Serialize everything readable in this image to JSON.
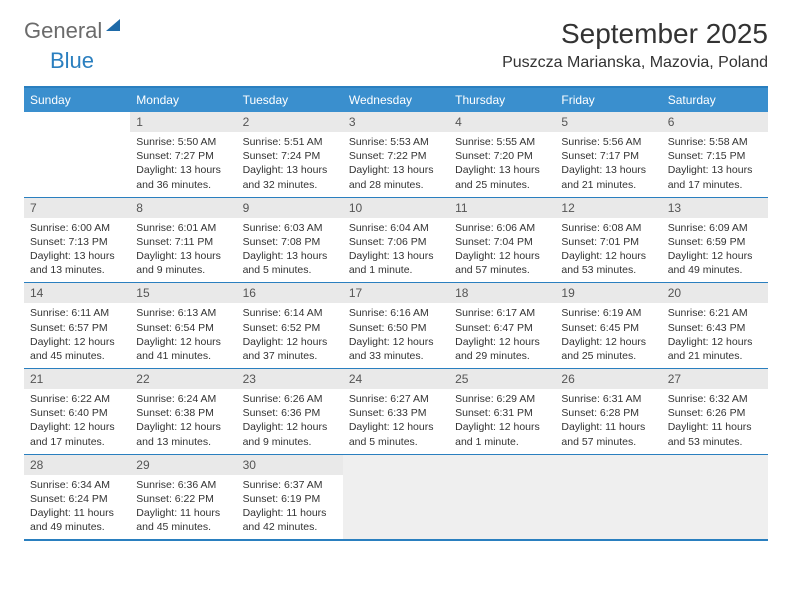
{
  "logo": {
    "part1": "General",
    "part2": "Blue"
  },
  "title": "September 2025",
  "location": "Puszcza Marianska, Mazovia, Poland",
  "day_headers": [
    "Sunday",
    "Monday",
    "Tuesday",
    "Wednesday",
    "Thursday",
    "Friday",
    "Saturday"
  ],
  "colors": {
    "header_bg": "#3a8fce",
    "header_fg": "#ffffff",
    "border": "#2a7fbf",
    "daynum_bg": "#e9e9e9",
    "logo_gray": "#6b6b6b",
    "logo_blue": "#2a7fbf"
  },
  "weeks": [
    [
      {
        "blank": true
      },
      {
        "n": "1",
        "sr": "5:50 AM",
        "ss": "7:27 PM",
        "dl": "13 hours and 36 minutes."
      },
      {
        "n": "2",
        "sr": "5:51 AM",
        "ss": "7:24 PM",
        "dl": "13 hours and 32 minutes."
      },
      {
        "n": "3",
        "sr": "5:53 AM",
        "ss": "7:22 PM",
        "dl": "13 hours and 28 minutes."
      },
      {
        "n": "4",
        "sr": "5:55 AM",
        "ss": "7:20 PM",
        "dl": "13 hours and 25 minutes."
      },
      {
        "n": "5",
        "sr": "5:56 AM",
        "ss": "7:17 PM",
        "dl": "13 hours and 21 minutes."
      },
      {
        "n": "6",
        "sr": "5:58 AM",
        "ss": "7:15 PM",
        "dl": "13 hours and 17 minutes."
      }
    ],
    [
      {
        "n": "7",
        "sr": "6:00 AM",
        "ss": "7:13 PM",
        "dl": "13 hours and 13 minutes."
      },
      {
        "n": "8",
        "sr": "6:01 AM",
        "ss": "7:11 PM",
        "dl": "13 hours and 9 minutes."
      },
      {
        "n": "9",
        "sr": "6:03 AM",
        "ss": "7:08 PM",
        "dl": "13 hours and 5 minutes."
      },
      {
        "n": "10",
        "sr": "6:04 AM",
        "ss": "7:06 PM",
        "dl": "13 hours and 1 minute."
      },
      {
        "n": "11",
        "sr": "6:06 AM",
        "ss": "7:04 PM",
        "dl": "12 hours and 57 minutes."
      },
      {
        "n": "12",
        "sr": "6:08 AM",
        "ss": "7:01 PM",
        "dl": "12 hours and 53 minutes."
      },
      {
        "n": "13",
        "sr": "6:09 AM",
        "ss": "6:59 PM",
        "dl": "12 hours and 49 minutes."
      }
    ],
    [
      {
        "n": "14",
        "sr": "6:11 AM",
        "ss": "6:57 PM",
        "dl": "12 hours and 45 minutes."
      },
      {
        "n": "15",
        "sr": "6:13 AM",
        "ss": "6:54 PM",
        "dl": "12 hours and 41 minutes."
      },
      {
        "n": "16",
        "sr": "6:14 AM",
        "ss": "6:52 PM",
        "dl": "12 hours and 37 minutes."
      },
      {
        "n": "17",
        "sr": "6:16 AM",
        "ss": "6:50 PM",
        "dl": "12 hours and 33 minutes."
      },
      {
        "n": "18",
        "sr": "6:17 AM",
        "ss": "6:47 PM",
        "dl": "12 hours and 29 minutes."
      },
      {
        "n": "19",
        "sr": "6:19 AM",
        "ss": "6:45 PM",
        "dl": "12 hours and 25 minutes."
      },
      {
        "n": "20",
        "sr": "6:21 AM",
        "ss": "6:43 PM",
        "dl": "12 hours and 21 minutes."
      }
    ],
    [
      {
        "n": "21",
        "sr": "6:22 AM",
        "ss": "6:40 PM",
        "dl": "12 hours and 17 minutes."
      },
      {
        "n": "22",
        "sr": "6:24 AM",
        "ss": "6:38 PM",
        "dl": "12 hours and 13 minutes."
      },
      {
        "n": "23",
        "sr": "6:26 AM",
        "ss": "6:36 PM",
        "dl": "12 hours and 9 minutes."
      },
      {
        "n": "24",
        "sr": "6:27 AM",
        "ss": "6:33 PM",
        "dl": "12 hours and 5 minutes."
      },
      {
        "n": "25",
        "sr": "6:29 AM",
        "ss": "6:31 PM",
        "dl": "12 hours and 1 minute."
      },
      {
        "n": "26",
        "sr": "6:31 AM",
        "ss": "6:28 PM",
        "dl": "11 hours and 57 minutes."
      },
      {
        "n": "27",
        "sr": "6:32 AM",
        "ss": "6:26 PM",
        "dl": "11 hours and 53 minutes."
      }
    ],
    [
      {
        "n": "28",
        "sr": "6:34 AM",
        "ss": "6:24 PM",
        "dl": "11 hours and 49 minutes."
      },
      {
        "n": "29",
        "sr": "6:36 AM",
        "ss": "6:22 PM",
        "dl": "11 hours and 45 minutes."
      },
      {
        "n": "30",
        "sr": "6:37 AM",
        "ss": "6:19 PM",
        "dl": "11 hours and 42 minutes."
      },
      {
        "trailing": true
      },
      {
        "trailing": true
      },
      {
        "trailing": true
      },
      {
        "trailing": true
      }
    ]
  ],
  "labels": {
    "sunrise": "Sunrise:",
    "sunset": "Sunset:",
    "daylight": "Daylight:"
  }
}
